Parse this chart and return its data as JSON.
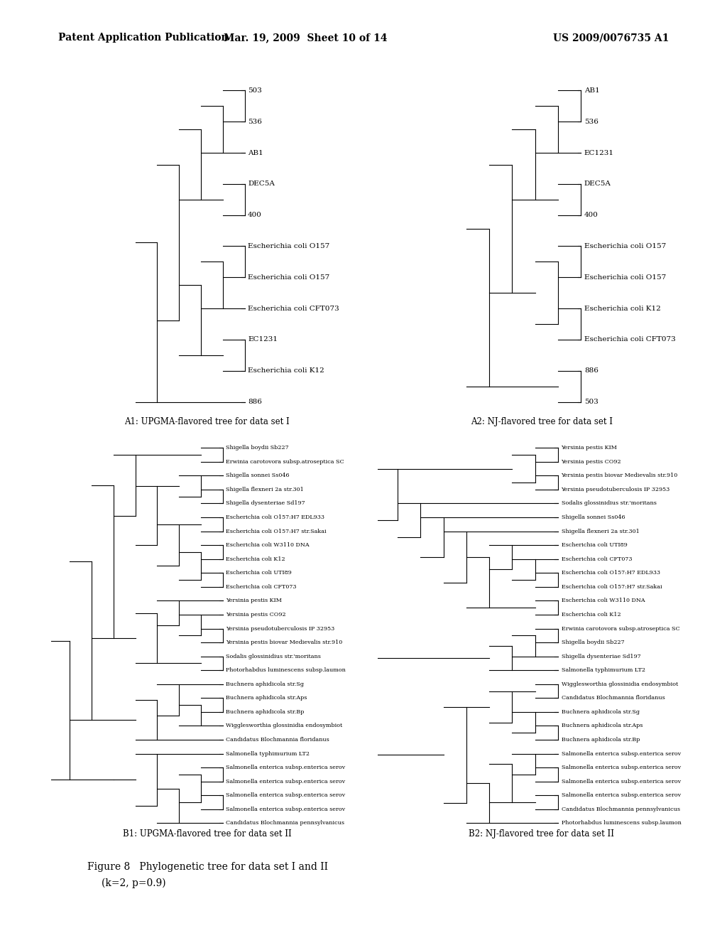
{
  "bg_color": "#ffffff",
  "header_left": "Patent Application Publication",
  "header_center": "Mar. 19, 2009  Sheet 10 of 14",
  "header_right": "US 2009/0076735 A1",
  "figure_caption": "Figure 8   Phylogenetic tree for data set I and II\n   (k=2, p=0.9)",
  "tree_A1_label": "A1: UPGMA-flavored tree for data set I",
  "tree_A2_label": "A2: NJ-flavored tree for data set I",
  "tree_B1_label": "B1: UPGMA-flavored tree for data set II",
  "tree_B2_label": "B2: NJ-flavored tree for data set II",
  "tree_A1_leaves": [
    "503",
    "536",
    "AB1",
    "DEC5A",
    "400",
    "Escherichia coli O157",
    "Escherichia coli O157",
    "Escherichia coli CFT073",
    "EC1231",
    "Escherichia coli K12",
    "886"
  ],
  "tree_A2_leaves": [
    "AB1",
    "536",
    "EC1231",
    "DEC5A",
    "400",
    "Escherichia coli O157",
    "Escherichia coli O157",
    "Escherichia coli K12",
    "Escherichia coli CFT073",
    "886",
    "503"
  ],
  "tree_B1_leaves": [
    "Shigella boydii Sb227",
    "Erwinia carotovora subsp.atroseptica SC",
    "Shigella sonnei Ss046",
    "Shigella flexneri 2a str.301",
    "Shigella dysenteriae Sd197",
    "Escherichia coli O157:H7 EDL933",
    "Escherichia coli O157:H7 str.Sakai",
    "Escherichia coli W3110 DNA",
    "Escherichia coli K12",
    "Escherichia coli UTI89",
    "Escherichia coli CFT073",
    "Yersinia pestis KIM",
    "Yersinia pestis CO92",
    "Yersinia pseudotuberculosis IP 32953",
    "Yersinia pestis biovar Medievalis str.910",
    "Sodalis glossinidius str.'moritans",
    "Photorhabdus luminescens subsp.laumon",
    "Buchnera aphidicola str.Sg",
    "Buchnera aphidicola str.Aps",
    "Buchnera aphidicola str.Bp",
    "Wigglesworthia glossinidia endosymbiot",
    "Candidatus Blochmannia floridanus",
    "Salmonella typhimurium LT2",
    "Salmonella enterica subsp.enterica serov",
    "Salmonella enterica subsp.enterica serov",
    "Salmonella enterica subsp.enterica serov",
    "Salmonella enterica subsp.enterica serov",
    "Candidatus Blochmannia pennsylvanicus"
  ],
  "tree_B2_leaves": [
    "Yersinia pestis KIM",
    "Yersinia pestis CO92",
    "Yersinia pestis biovar Medievalis str.910",
    "Yersinia pseudotuberculosis IP 32953",
    "Sodalis glossinidius str.'moritans",
    "Shigella sonnei Ss046",
    "Shigella flexneri 2a str.301",
    "Escherichia coli UTI89",
    "Escherichia coli CFT073",
    "Escherichia coli O157:H7 EDL933",
    "Escherichia coli O157:H7 str.Sakai",
    "Escherichia coli W3110 DNA",
    "Escherichia coli K12",
    "Erwinia carotovora subsp.atroseptica SC",
    "Shigella boydii Sb227",
    "Shigella dysenteriae Sd197",
    "Salmonella typhimurium LT2",
    "Wigglesworthia glossinidia endosymbiot",
    "Candidatus Blochmannia floridanus",
    "Buchnera aphidicola str.Sg",
    "Buchnera aphidicola str.Aps",
    "Buchnera aphidicola str.Bp",
    "Salmonella enterica subsp.enterica serov",
    "Salmonella enterica subsp.enterica serov",
    "Salmonella enterica subsp.enterica serov",
    "Salmonella enterica subsp.enterica serov",
    "Candidatus Blochmannia pennsylvanicus",
    "Photorhabdus luminescens subsp.laumon"
  ]
}
